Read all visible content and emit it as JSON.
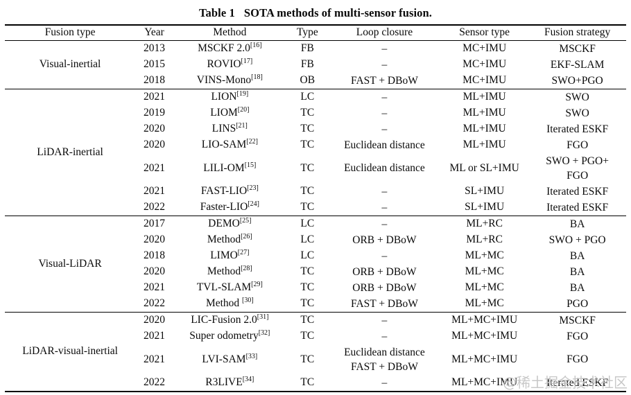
{
  "title": {
    "label": "Table 1",
    "text": "SOTA methods of multi-sensor fusion."
  },
  "watermark": "@稀土掘金技术社区",
  "table": {
    "columns": [
      "Fusion type",
      "Year",
      "Method",
      "Type",
      "Loop closure",
      "Sensor type",
      "Fusion strategy"
    ],
    "groups": [
      {
        "fusion_type": "Visual-inertial",
        "rows": [
          {
            "year": "2013",
            "method": "MSCKF 2.0",
            "ref": "[16]",
            "type": "FB",
            "loop_closure": [
              "–"
            ],
            "sensor_type": "MC+IMU",
            "fusion_strategy": [
              "MSCKF"
            ]
          },
          {
            "year": "2015",
            "method": "ROVIO",
            "ref": "[17]",
            "type": "FB",
            "loop_closure": [
              "–"
            ],
            "sensor_type": "MC+IMU",
            "fusion_strategy": [
              "EKF-SLAM"
            ]
          },
          {
            "year": "2018",
            "method": "VINS-Mono",
            "ref": "[18]",
            "type": "OB",
            "loop_closure": [
              "FAST + DBoW"
            ],
            "sensor_type": "MC+IMU",
            "fusion_strategy": [
              "SWO+PGO"
            ]
          }
        ]
      },
      {
        "fusion_type": "LiDAR-inertial",
        "rows": [
          {
            "year": "2021",
            "method": "LION",
            "ref": "[19]",
            "type": "LC",
            "loop_closure": [
              "–"
            ],
            "sensor_type": "ML+IMU",
            "fusion_strategy": [
              "SWO"
            ]
          },
          {
            "year": "2019",
            "method": "LIOM",
            "ref": "[20]",
            "type": "TC",
            "loop_closure": [
              "–"
            ],
            "sensor_type": "ML+IMU",
            "fusion_strategy": [
              "SWO"
            ]
          },
          {
            "year": "2020",
            "method": "LINS",
            "ref": "[21]",
            "type": "TC",
            "loop_closure": [
              "–"
            ],
            "sensor_type": "ML+IMU",
            "fusion_strategy": [
              "Iterated ESKF"
            ]
          },
          {
            "year": "2020",
            "method": "LIO-SAM",
            "ref": "[22]",
            "type": "TC",
            "loop_closure": [
              "Euclidean distance"
            ],
            "sensor_type": "ML+IMU",
            "fusion_strategy": [
              "FGO"
            ]
          },
          {
            "year": "2021",
            "method": "LILI-OM",
            "ref": "[15]",
            "type": "TC",
            "loop_closure": [
              "Euclidean distance"
            ],
            "sensor_type": "ML or SL+IMU",
            "fusion_strategy": [
              "SWO + PGO+",
              "FGO"
            ]
          },
          {
            "year": "2021",
            "method": "FAST-LIO",
            "ref": "[23]",
            "type": "TC",
            "loop_closure": [
              "–"
            ],
            "sensor_type": "SL+IMU",
            "fusion_strategy": [
              "Iterated ESKF"
            ]
          },
          {
            "year": "2022",
            "method": "Faster-LIO",
            "ref": "[24]",
            "type": "TC",
            "loop_closure": [
              "–"
            ],
            "sensor_type": "SL+IMU",
            "fusion_strategy": [
              "Iterated ESKF"
            ]
          }
        ]
      },
      {
        "fusion_type": "Visual-LiDAR",
        "rows": [
          {
            "year": "2017",
            "method": "DEMO",
            "ref": "[25]",
            "type": "LC",
            "loop_closure": [
              "–"
            ],
            "sensor_type": "ML+RC",
            "fusion_strategy": [
              "BA"
            ]
          },
          {
            "year": "2020",
            "method": "Method",
            "ref": "[26]",
            "type": "LC",
            "loop_closure": [
              "ORB + DBoW"
            ],
            "sensor_type": "ML+RC",
            "fusion_strategy": [
              "SWO + PGO"
            ]
          },
          {
            "year": "2018",
            "method": "LIMO",
            "ref": "[27]",
            "type": "LC",
            "loop_closure": [
              "–"
            ],
            "sensor_type": "ML+MC",
            "fusion_strategy": [
              "BA"
            ]
          },
          {
            "year": "2020",
            "method": "Method",
            "ref": "[28]",
            "type": "TC",
            "loop_closure": [
              "ORB + DBoW"
            ],
            "sensor_type": "ML+MC",
            "fusion_strategy": [
              "BA"
            ]
          },
          {
            "year": "2021",
            "method": "TVL-SLAM",
            "ref": "[29]",
            "type": "TC",
            "loop_closure": [
              "ORB + DBoW"
            ],
            "sensor_type": "ML+MC",
            "fusion_strategy": [
              "BA"
            ]
          },
          {
            "year": "2022",
            "method": "Method ",
            "ref": "[30]",
            "type": "TC",
            "loop_closure": [
              "FAST + DBoW"
            ],
            "sensor_type": "ML+MC",
            "fusion_strategy": [
              "PGO"
            ]
          }
        ]
      },
      {
        "fusion_type": "LiDAR-visual-inertial",
        "rows": [
          {
            "year": "2020",
            "method": "LIC-Fusion 2.0",
            "ref": "[31]",
            "type": "TC",
            "loop_closure": [
              "–"
            ],
            "sensor_type": "ML+MC+IMU",
            "fusion_strategy": [
              "MSCKF"
            ]
          },
          {
            "year": "2021",
            "method": "Super odometry",
            "ref": "[32]",
            "type": "TC",
            "loop_closure": [
              "–"
            ],
            "sensor_type": "ML+MC+IMU",
            "fusion_strategy": [
              "FGO"
            ]
          },
          {
            "year": "2021",
            "method": "LVI-SAM",
            "ref": "[33]",
            "type": "TC",
            "loop_closure": [
              "Euclidean distance",
              "FAST + DBoW"
            ],
            "sensor_type": "ML+MC+IMU",
            "fusion_strategy": [
              "FGO"
            ]
          },
          {
            "year": "2022",
            "method": "R3LIVE",
            "ref": "[34]",
            "type": "TC",
            "loop_closure": [
              "–"
            ],
            "sensor_type": "ML+MC+IMU",
            "fusion_strategy": [
              "Iterated ESKF"
            ]
          }
        ]
      }
    ]
  }
}
